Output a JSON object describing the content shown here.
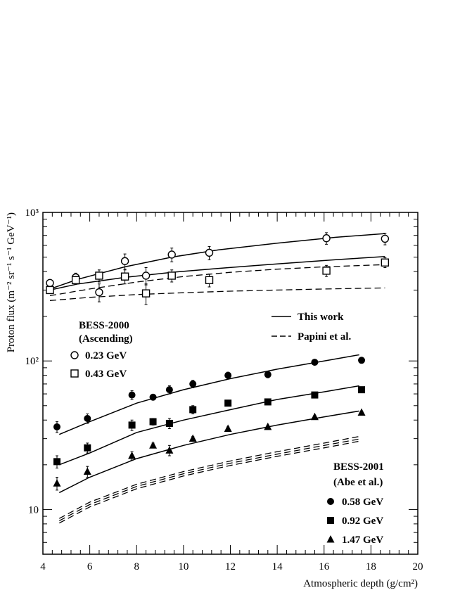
{
  "chart_data": {
    "type": "scatter",
    "y_scale": "log",
    "xlim": [
      4,
      20
    ],
    "ylim": [
      5,
      1000
    ],
    "xlabel": "Atmospheric depth (g/cm²)",
    "ylabel": "Proton flux (m⁻² sr⁻¹ s⁻¹ GeV⁻¹)",
    "x_ticks": [
      4,
      6,
      8,
      10,
      12,
      14,
      16,
      18,
      20
    ],
    "y_ticks": [
      {
        "value": 10,
        "label": "10"
      },
      {
        "value": 100,
        "label": "10²"
      },
      {
        "value": 1000,
        "label": "10³"
      }
    ],
    "legend_lines": [
      {
        "label": "This work",
        "dash": "solid"
      },
      {
        "label": "Papini et al.",
        "dash": "dashed"
      }
    ],
    "groups": [
      {
        "title": [
          "BESS-2000",
          "(Ascending)"
        ],
        "entries": [
          {
            "label": "0.23 GeV",
            "marker": "open-circle"
          },
          {
            "label": "0.43 GeV",
            "marker": "open-square"
          }
        ]
      },
      {
        "title": [
          "BESS-2001",
          "(Abe et al.)"
        ],
        "entries": [
          {
            "label": "0.58 GeV",
            "marker": "filled-circle"
          },
          {
            "label": "0.92 GeV",
            "marker": "filled-square"
          },
          {
            "label": "1.47 GeV",
            "marker": "filled-triangle"
          }
        ]
      }
    ],
    "series": [
      {
        "name": "0.23 GeV",
        "marker": "open-circle",
        "x": [
          4.3,
          5.4,
          6.4,
          7.5,
          8.4,
          9.5,
          11.1,
          16.1,
          18.6
        ],
        "y": [
          335,
          365,
          290,
          470,
          375,
          520,
          535,
          670,
          665
        ],
        "err": [
          15,
          25,
          40,
          55,
          50,
          55,
          55,
          60,
          60
        ]
      },
      {
        "name": "0.43 GeV",
        "marker": "open-square",
        "x": [
          4.3,
          5.4,
          6.4,
          7.5,
          8.4,
          9.5,
          11.1,
          16.1,
          18.6
        ],
        "y": [
          300,
          350,
          375,
          370,
          285,
          375,
          350,
          405,
          460
        ],
        "err": [
          15,
          20,
          35,
          40,
          45,
          35,
          35,
          35,
          35
        ]
      },
      {
        "name": "0.58 GeV",
        "marker": "filled-circle",
        "x": [
          4.6,
          5.9,
          7.8,
          8.7,
          9.4,
          10.4,
          11.9,
          13.6,
          15.6,
          17.6
        ],
        "y": [
          36,
          41,
          59,
          57,
          64,
          70,
          80,
          81,
          98,
          101
        ],
        "err": [
          3,
          3,
          4,
          2,
          4,
          4,
          4,
          4,
          3,
          3
        ]
      },
      {
        "name": "0.92 GeV",
        "marker": "filled-square",
        "x": [
          4.6,
          5.9,
          7.8,
          8.7,
          9.4,
          10.4,
          11.9,
          13.6,
          15.6,
          17.6
        ],
        "y": [
          21,
          26,
          37,
          39,
          38,
          47,
          52,
          53,
          59,
          64
        ],
        "err": [
          2,
          2,
          3,
          2,
          3,
          3,
          2,
          2,
          2,
          2
        ]
      },
      {
        "name": "1.47 GeV",
        "marker": "filled-triangle",
        "x": [
          4.6,
          5.9,
          7.8,
          8.7,
          9.4,
          10.4,
          11.9,
          13.6,
          15.6,
          17.6
        ],
        "y": [
          15,
          18,
          23,
          27,
          25,
          30,
          35,
          36,
          42,
          45
        ],
        "err": [
          1.5,
          1.5,
          1.5,
          1,
          2,
          1,
          1,
          1,
          1,
          1
        ]
      }
    ],
    "curves_this_work": [
      {
        "x": [
          4.3,
          5.5,
          7.5,
          9.5,
          11.5,
          14,
          16.5,
          18.6
        ],
        "y": [
          305,
          355,
          430,
          500,
          560,
          620,
          680,
          720
        ]
      },
      {
        "x": [
          4.3,
          5.5,
          7.5,
          9.5,
          11.5,
          14,
          16.5,
          18.6
        ],
        "y": [
          300,
          330,
          365,
          395,
          420,
          450,
          480,
          505
        ]
      },
      {
        "x": [
          4.7,
          6,
          8,
          10,
          12,
          14,
          16,
          17.5
        ],
        "y": [
          32,
          39,
          52,
          64,
          76,
          88,
          100,
          110
        ]
      },
      {
        "x": [
          4.7,
          6,
          8,
          10,
          12,
          14,
          16,
          17.5
        ],
        "y": [
          20,
          24,
          33,
          40,
          47,
          55,
          62,
          68
        ]
      },
      {
        "x": [
          4.7,
          6,
          8,
          10,
          12,
          14,
          16,
          17.5
        ],
        "y": [
          13,
          16.5,
          22,
          27,
          32,
          37,
          42,
          46
        ]
      }
    ],
    "curves_papini": [
      {
        "x": [
          4.3,
          6,
          8,
          10,
          12,
          14,
          16,
          18.6
        ],
        "y": [
          275,
          305,
          340,
          370,
          395,
          415,
          430,
          445
        ]
      },
      {
        "x": [
          4.3,
          6,
          8,
          10,
          12,
          14,
          16,
          18.6
        ],
        "y": [
          255,
          268,
          280,
          288,
          295,
          300,
          305,
          310
        ]
      },
      {
        "x": [
          4.7,
          6,
          8,
          10,
          12,
          14,
          16,
          17.5
        ],
        "y": [
          8.7,
          11.2,
          14.8,
          18.0,
          21.2,
          24.5,
          28.0,
          31.0
        ]
      },
      {
        "x": [
          4.7,
          6,
          8,
          10,
          12,
          14,
          16,
          17.5
        ],
        "y": [
          8.4,
          10.8,
          14.3,
          17.4,
          20.5,
          23.6,
          27.0,
          29.8
        ]
      },
      {
        "x": [
          4.7,
          6,
          8,
          10,
          12,
          14,
          16,
          17.5
        ],
        "y": [
          8.1,
          10.4,
          13.8,
          16.8,
          19.8,
          22.8,
          26.0,
          28.8
        ]
      }
    ]
  }
}
